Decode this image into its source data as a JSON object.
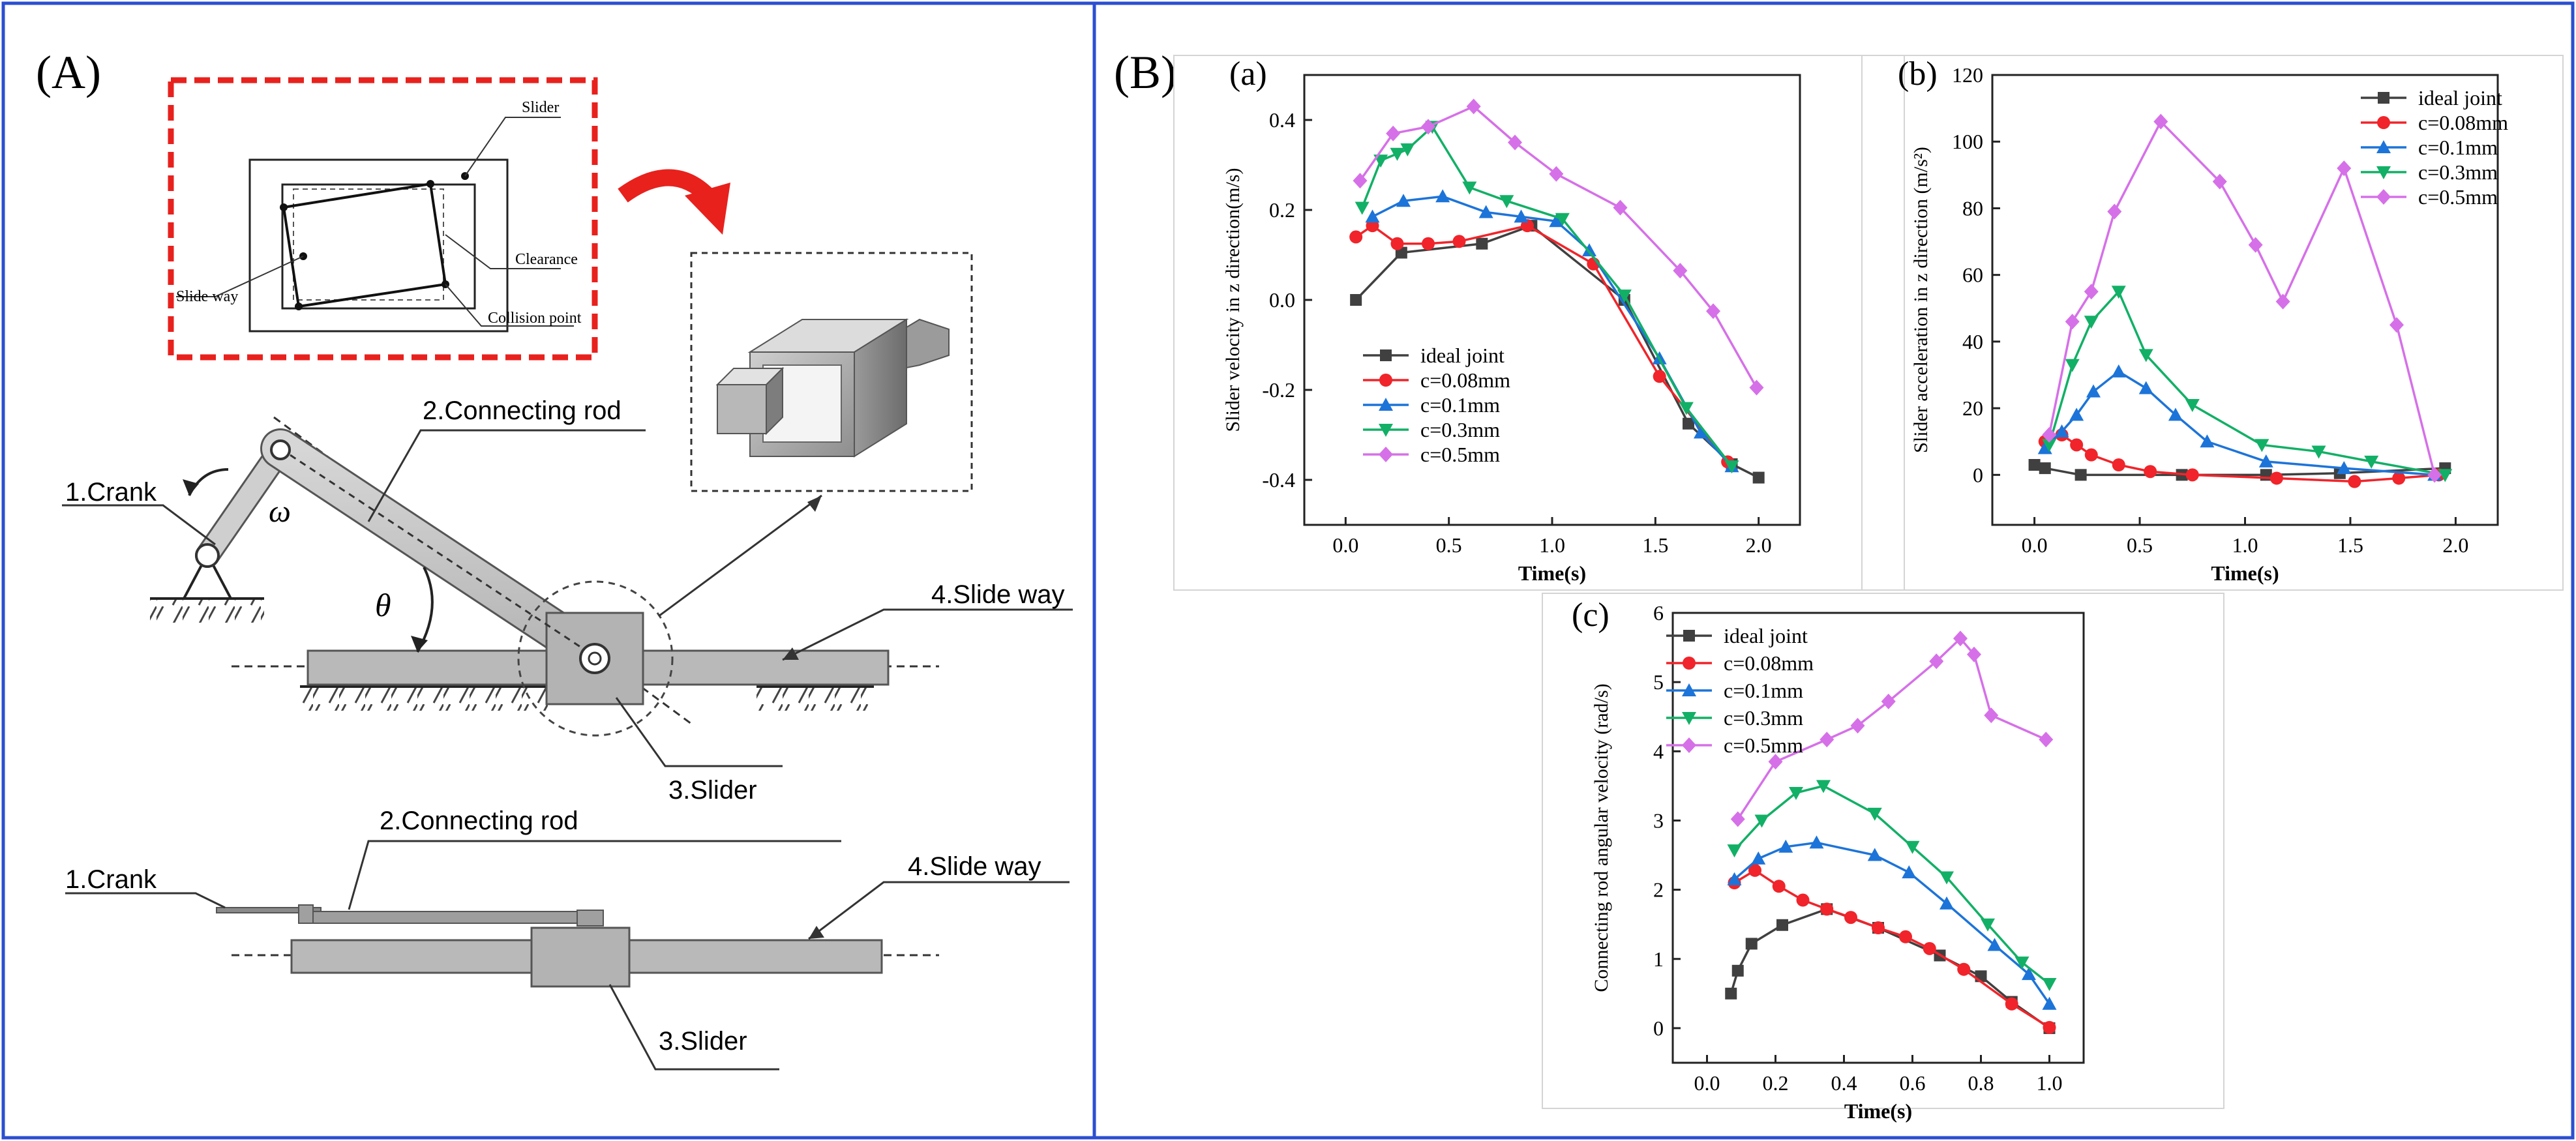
{
  "panel_a": {
    "label": "(A)",
    "inset_labels": {
      "slider": "Slider",
      "clearance": "Clearance",
      "slide_way": "Slide way",
      "collision_point": "Collision point"
    },
    "side_labels": {
      "crank": "1.Crank",
      "connecting_rod": "2.Connecting rod",
      "slider": "3.Slider",
      "slide_way": "4.Slide way",
      "omega": "ω",
      "theta": "θ"
    },
    "top_labels": {
      "crank": "1.Crank",
      "connecting_rod": "2.Connecting rod",
      "slider": "3.Slider",
      "slide_way": "4.Slide way"
    }
  },
  "panel_b": {
    "label": "(B)",
    "legend_entries": [
      "ideal joint",
      "c=0.08mm",
      "c=0.1mm",
      "c=0.3mm",
      "c=0.5mm"
    ],
    "colors": [
      "#404040",
      "#f0242a",
      "#1c74d9",
      "#12b066",
      "#d670e8"
    ],
    "markers": [
      "square",
      "circle",
      "triangle-up",
      "triangle-down",
      "diamond"
    ]
  },
  "chart_data": [
    {
      "type": "line",
      "panel": "(a)",
      "title": "(a)",
      "xlabel": "Time(s)",
      "ylabel": "Slider velocity in z direction(m/s)",
      "xlim": [
        -0.2,
        2.2
      ],
      "ylim": [
        -0.5,
        0.5
      ],
      "xticks": [
        0.0,
        0.5,
        1.0,
        1.5,
        2.0
      ],
      "xtick_labels": [
        "0.0",
        "0.5",
        "1.0",
        "1.5",
        "2.0"
      ],
      "yticks": [
        -0.4,
        -0.2,
        0.0,
        0.2,
        0.4
      ],
      "ytick_labels": [
        "-0.4",
        "-0.2",
        "0.0",
        "0.2",
        "0.4"
      ],
      "legend_position": "lower-left",
      "series": [
        {
          "name": "ideal joint",
          "x": [
            0.05,
            0.27,
            0.66,
            0.9,
            1.35,
            1.66,
            1.87,
            2.0
          ],
          "y": [
            0.0,
            0.105,
            0.125,
            0.165,
            0.0,
            -0.275,
            -0.365,
            -0.395
          ]
        },
        {
          "name": "c=0.08mm",
          "x": [
            0.05,
            0.13,
            0.25,
            0.4,
            0.55,
            0.88,
            1.2,
            1.52,
            1.85
          ],
          "y": [
            0.14,
            0.165,
            0.125,
            0.125,
            0.13,
            0.165,
            0.08,
            -0.17,
            -0.36
          ]
        },
        {
          "name": "c=0.1mm",
          "x": [
            0.13,
            0.28,
            0.47,
            0.68,
            0.85,
            1.02,
            1.18,
            1.52,
            1.72,
            1.87
          ],
          "y": [
            0.185,
            0.22,
            0.23,
            0.195,
            0.185,
            0.175,
            0.11,
            -0.13,
            -0.295,
            -0.37
          ]
        },
        {
          "name": "c=0.3mm",
          "x": [
            0.08,
            0.17,
            0.25,
            0.3,
            0.42,
            0.6,
            0.78,
            1.05,
            1.35,
            1.65,
            1.87
          ],
          "y": [
            0.205,
            0.31,
            0.325,
            0.335,
            0.385,
            0.25,
            0.22,
            0.18,
            0.01,
            -0.24,
            -0.37
          ]
        },
        {
          "name": "c=0.5mm",
          "x": [
            0.07,
            0.23,
            0.4,
            0.62,
            0.82,
            1.02,
            1.33,
            1.62,
            1.78,
            1.99
          ],
          "y": [
            0.265,
            0.37,
            0.385,
            0.43,
            0.35,
            0.28,
            0.205,
            0.065,
            -0.025,
            -0.195
          ]
        }
      ]
    },
    {
      "type": "line",
      "panel": "(b)",
      "title": "(b)",
      "xlabel": "Time(s)",
      "ylabel": "Slider acceleration in z direction (m/s²)",
      "xlim": [
        -0.2,
        2.2
      ],
      "ylim": [
        -15,
        120
      ],
      "xticks": [
        0.0,
        0.5,
        1.0,
        1.5,
        2.0
      ],
      "xtick_labels": [
        "0.0",
        "0.5",
        "1.0",
        "1.5",
        "2.0"
      ],
      "yticks": [
        0,
        20,
        40,
        60,
        80,
        100,
        120
      ],
      "ytick_labels": [
        "0",
        "20",
        "40",
        "60",
        "80",
        "100",
        "120"
      ],
      "legend_position": "top-right",
      "series": [
        {
          "name": "ideal joint",
          "x": [
            0.0,
            0.05,
            0.22,
            0.7,
            1.1,
            1.45,
            1.95
          ],
          "y": [
            3,
            2,
            0,
            0,
            0,
            0.5,
            2
          ]
        },
        {
          "name": "c=0.08mm",
          "x": [
            0.05,
            0.13,
            0.2,
            0.27,
            0.4,
            0.55,
            0.75,
            1.15,
            1.52,
            1.73,
            1.92
          ],
          "y": [
            10,
            12,
            9,
            6,
            3,
            1,
            0,
            -1,
            -2,
            -1,
            0
          ]
        },
        {
          "name": "c=0.1mm",
          "x": [
            0.05,
            0.13,
            0.2,
            0.28,
            0.4,
            0.53,
            0.67,
            0.82,
            1.1,
            1.47,
            1.9
          ],
          "y": [
            8,
            13,
            18,
            25,
            31,
            26,
            18,
            10,
            4,
            2,
            0
          ]
        },
        {
          "name": "c=0.3mm",
          "x": [
            0.07,
            0.18,
            0.27,
            0.4,
            0.53,
            0.75,
            1.08,
            1.35,
            1.6,
            1.95
          ],
          "y": [
            9,
            33,
            46,
            55,
            36,
            21,
            9,
            7,
            4,
            0
          ]
        },
        {
          "name": "c=0.5mm",
          "x": [
            0.07,
            0.18,
            0.27,
            0.38,
            0.6,
            0.88,
            1.05,
            1.18,
            1.47,
            1.72,
            1.9
          ],
          "y": [
            12,
            46,
            55,
            79,
            106,
            88,
            69,
            52,
            92,
            45,
            0
          ]
        }
      ]
    },
    {
      "type": "line",
      "panel": "(c)",
      "title": "(c)",
      "xlabel": "Time(s)",
      "ylabel": "Connecting rod angular velocity (rad/s)",
      "xlim": [
        -0.1,
        1.1
      ],
      "ylim": [
        -0.5,
        6.0
      ],
      "xticks": [
        0.0,
        0.2,
        0.4,
        0.6,
        0.8,
        1.0
      ],
      "xtick_labels": [
        "0.0",
        "0.2",
        "0.4",
        "0.6",
        "0.8",
        "1.0"
      ],
      "yticks": [
        0,
        1,
        2,
        3,
        4,
        5,
        6
      ],
      "ytick_labels": [
        "0",
        "1",
        "2",
        "3",
        "4",
        "5",
        "6"
      ],
      "legend_position": "top-left",
      "series": [
        {
          "name": "ideal joint",
          "x": [
            0.07,
            0.09,
            0.13,
            0.22,
            0.35,
            0.5,
            0.68,
            0.8,
            0.89,
            1.0
          ],
          "y": [
            0.5,
            0.83,
            1.22,
            1.49,
            1.72,
            1.45,
            1.05,
            0.75,
            0.38,
            0.0
          ]
        },
        {
          "name": "c=0.08mm",
          "x": [
            0.08,
            0.14,
            0.21,
            0.28,
            0.35,
            0.42,
            0.5,
            0.58,
            0.65,
            0.75,
            0.89,
            1.0
          ],
          "y": [
            2.1,
            2.28,
            2.05,
            1.85,
            1.72,
            1.6,
            1.45,
            1.32,
            1.15,
            0.85,
            0.35,
            0.01
          ]
        },
        {
          "name": "c=0.1mm",
          "x": [
            0.08,
            0.15,
            0.23,
            0.32,
            0.49,
            0.59,
            0.7,
            0.84,
            0.94,
            1.0
          ],
          "y": [
            2.15,
            2.45,
            2.62,
            2.68,
            2.5,
            2.25,
            1.8,
            1.2,
            0.78,
            0.35
          ]
        },
        {
          "name": "c=0.3mm",
          "x": [
            0.08,
            0.16,
            0.26,
            0.34,
            0.49,
            0.6,
            0.7,
            0.82,
            0.92,
            1.0
          ],
          "y": [
            2.57,
            3.0,
            3.4,
            3.5,
            3.1,
            2.62,
            2.18,
            1.5,
            0.95,
            0.64
          ]
        },
        {
          "name": "c=0.5mm",
          "x": [
            0.09,
            0.2,
            0.35,
            0.44,
            0.53,
            0.67,
            0.74,
            0.78,
            0.83,
            0.99
          ],
          "y": [
            3.02,
            3.85,
            4.17,
            4.37,
            4.72,
            5.3,
            5.63,
            5.4,
            4.52,
            4.17
          ]
        }
      ]
    }
  ]
}
